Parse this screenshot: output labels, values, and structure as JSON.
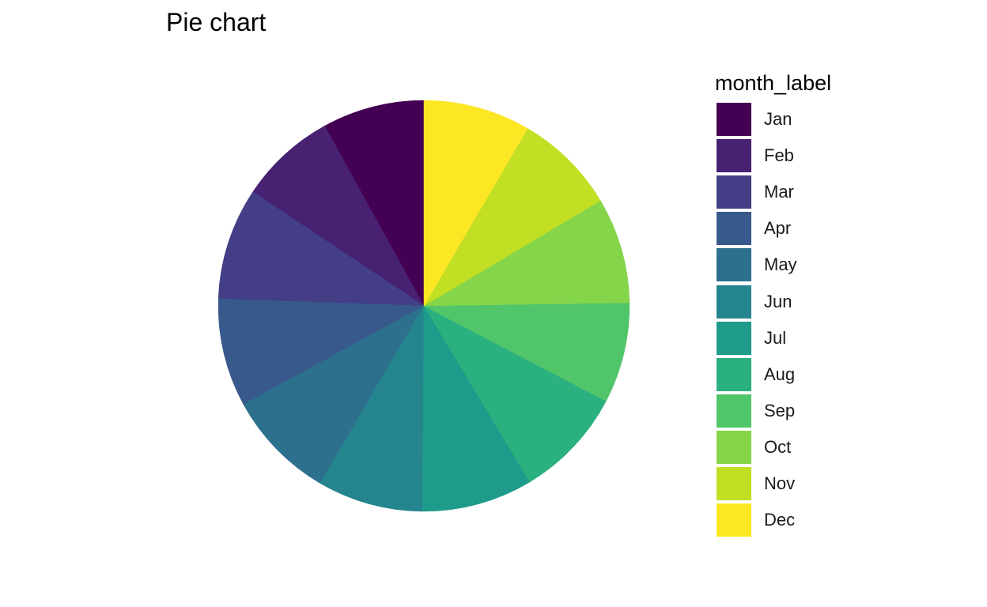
{
  "chart_data": {
    "type": "pie",
    "title": "Pie chart",
    "legend_title": "month_label",
    "legend_position": "right",
    "categories": [
      "Jan",
      "Feb",
      "Mar",
      "Apr",
      "May",
      "Jun",
      "Jul",
      "Aug",
      "Sep",
      "Oct",
      "Nov",
      "Dec"
    ],
    "values": [
      8.1,
      7.7,
      8.9,
      8.6,
      8.7,
      8.4,
      8.8,
      8.8,
      8.0,
      8.4,
      8.1,
      8.5
    ],
    "colors": [
      "#440154",
      "#482173",
      "#433E85",
      "#38598C",
      "#2D708E",
      "#25858E",
      "#1E9B8A",
      "#2BB07F",
      "#51C56A",
      "#85D54A",
      "#C2DF23",
      "#FDE725"
    ],
    "start": "12 o'clock",
    "direction": "counterclockwise"
  }
}
